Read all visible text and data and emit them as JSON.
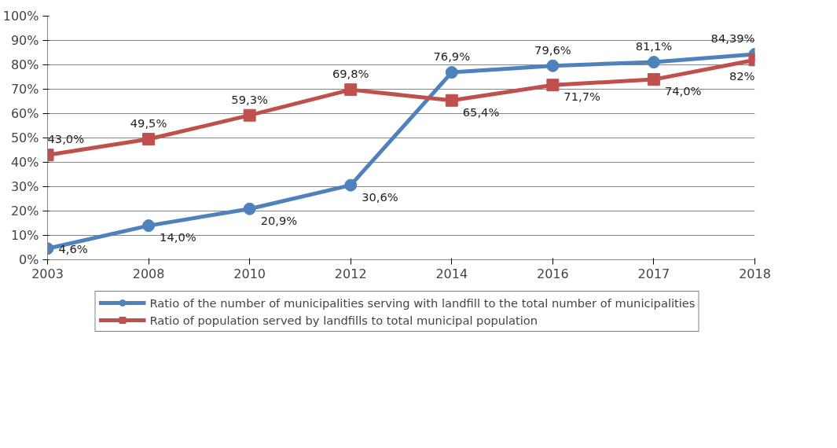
{
  "chart_data": {
    "type": "line",
    "categories": [
      "2003",
      "2008",
      "2010",
      "2012",
      "2014",
      "2016",
      "2017",
      "2018"
    ],
    "series": [
      {
        "name": "Ratio of the number of municipalities serving with landfill to the total number of municipalities",
        "color": "#4f81bd",
        "marker": "circle",
        "values": [
          4.6,
          14.0,
          20.9,
          30.6,
          76.9,
          79.6,
          81.1,
          84.39
        ],
        "value_labels": [
          "4,6%",
          "14,0%",
          "20,9%",
          "30,6%",
          "76,9%",
          "79,6%",
          "81,1%",
          "84,39%"
        ]
      },
      {
        "name": "Ratio of population served by landfills to total municipal population",
        "color": "#c0504d",
        "marker": "square",
        "values": [
          43.0,
          49.5,
          59.3,
          69.8,
          65.4,
          71.7,
          74.0,
          82
        ],
        "value_labels": [
          "43,0%",
          "49,5%",
          "59,3%",
          "69,8%",
          "65,4%",
          "71,7%",
          "74,0%",
          "82%"
        ]
      }
    ],
    "ylim": [
      0,
      100
    ],
    "yticks": [
      {
        "value": 0,
        "label": "0%"
      },
      {
        "value": 10,
        "label": "10%"
      },
      {
        "value": 20,
        "label": "20%"
      },
      {
        "value": 30,
        "label": "30%"
      },
      {
        "value": 40,
        "label": "40%"
      },
      {
        "value": 50,
        "label": "50%"
      },
      {
        "value": 60,
        "label": "60%"
      },
      {
        "value": 70,
        "label": "70%"
      },
      {
        "value": 80,
        "label": "80%"
      },
      {
        "value": 90,
        "label": "90%"
      },
      {
        "value": 100,
        "label": "100%"
      }
    ],
    "grid": "y",
    "legend": "bottom",
    "line_style": "solid"
  }
}
